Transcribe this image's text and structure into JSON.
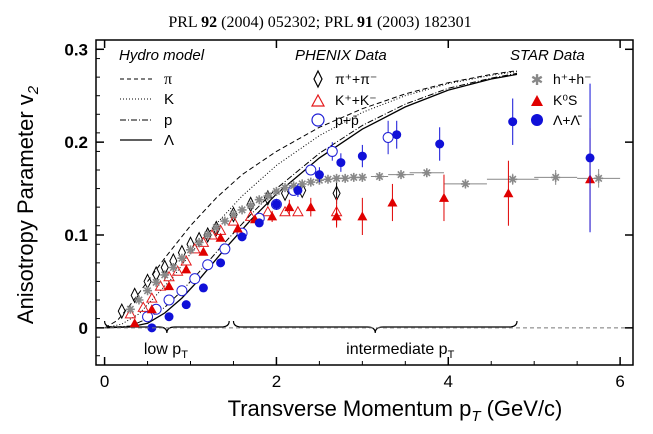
{
  "chart_data": {
    "type": "scatter",
    "citation": {
      "prefix1": "PRL ",
      "vol1": "92",
      "rest1": " (2004) 052302; PRL ",
      "vol2": "91",
      "rest2": " (2003) 182301"
    },
    "xlabel": "Transverse Momentum p",
    "xlabel_sub": "T",
    "xlabel_units": " (GeV/c)",
    "ylabel": "Anisotropy Parameter v",
    "ylabel_sub": "2",
    "xlim": [
      -0.1,
      6.15
    ],
    "ylim": [
      -0.04,
      0.31
    ],
    "xticks": [
      0,
      2,
      4,
      6
    ],
    "yticks": [
      0,
      0.1,
      0.2,
      0.3
    ],
    "xtick_labels": [
      "0",
      "2",
      "4",
      "6"
    ],
    "ytick_labels": [
      "0",
      "0.1",
      "0.2",
      "0.3"
    ],
    "zero_line": 0,
    "legend": {
      "hydro_title": "Hydro model",
      "phenix_title": "PHENIX Data",
      "star_title": "STAR Data",
      "hydro_items": [
        "π",
        "K",
        "p",
        "Λ"
      ],
      "phenix_items": [
        "π⁺+π⁻",
        "K⁺+K⁻",
        "p+p̄"
      ],
      "star_items": [
        "h⁺+h⁻",
        "K⁰S",
        "Λ+Λ̄"
      ]
    },
    "regions": [
      {
        "label_main": "low p",
        "label_sub": "T",
        "x_start": 0.0,
        "x_end": 1.45
      },
      {
        "label_main": "intermediate p",
        "label_sub": "T",
        "x_start": 1.5,
        "x_end": 4.8
      }
    ],
    "hydro_curves": [
      {
        "name": "π",
        "style": "dashed",
        "x": [
          0,
          0.15,
          0.3,
          0.5,
          0.7,
          1.0,
          1.3,
          1.6,
          2.0,
          2.5,
          3.0,
          3.5,
          4.0,
          4.5,
          4.8
        ],
        "y": [
          0,
          0.008,
          0.025,
          0.05,
          0.075,
          0.11,
          0.14,
          0.165,
          0.19,
          0.216,
          0.236,
          0.252,
          0.264,
          0.273,
          0.277
        ]
      },
      {
        "name": "K",
        "style": "dotted",
        "x": [
          0,
          0.2,
          0.4,
          0.6,
          0.8,
          1.0,
          1.3,
          1.6,
          2.0,
          2.5,
          3.0,
          3.5,
          4.0,
          4.5,
          4.8
        ],
        "y": [
          0,
          0.004,
          0.015,
          0.035,
          0.055,
          0.08,
          0.112,
          0.142,
          0.175,
          0.207,
          0.232,
          0.25,
          0.263,
          0.272,
          0.276
        ]
      },
      {
        "name": "p",
        "style": "dashdot",
        "x": [
          0,
          0.3,
          0.5,
          0.7,
          0.9,
          1.1,
          1.4,
          1.7,
          2.0,
          2.5,
          3.0,
          3.5,
          4.0,
          4.5,
          4.8
        ],
        "y": [
          0,
          0.002,
          0.01,
          0.022,
          0.04,
          0.06,
          0.092,
          0.122,
          0.15,
          0.188,
          0.218,
          0.241,
          0.258,
          0.269,
          0.274
        ]
      },
      {
        "name": "Λ",
        "style": "solid",
        "x": [
          0,
          0.3,
          0.5,
          0.7,
          0.9,
          1.1,
          1.4,
          1.7,
          2.0,
          2.5,
          3.0,
          3.5,
          4.0,
          4.5,
          4.8
        ],
        "y": [
          0,
          0.001,
          0.005,
          0.016,
          0.032,
          0.052,
          0.085,
          0.116,
          0.144,
          0.183,
          0.214,
          0.238,
          0.256,
          0.268,
          0.273
        ]
      }
    ],
    "series": [
      {
        "name": "PHENIX π⁺+π⁻",
        "marker": "diamond-open",
        "color": "#000000",
        "x": [
          0.2,
          0.35,
          0.5,
          0.6,
          0.7,
          0.8,
          0.9,
          1.0,
          1.1,
          1.2,
          1.3,
          1.5,
          1.7,
          1.9,
          2.1,
          2.3,
          2.7
        ],
        "y": [
          0.018,
          0.035,
          0.05,
          0.058,
          0.065,
          0.072,
          0.081,
          0.09,
          0.095,
          0.1,
          0.107,
          0.122,
          0.133,
          0.14,
          0.145,
          0.148,
          0.145
        ],
        "err": [
          0,
          0,
          0,
          0,
          0,
          0,
          0,
          0,
          0,
          0,
          0,
          0,
          0,
          0,
          0,
          0,
          0.012
        ]
      },
      {
        "name": "PHENIX K⁺+K⁻",
        "marker": "triangle-open",
        "color": "#e41a1c",
        "x": [
          0.3,
          0.45,
          0.55,
          0.65,
          0.75,
          0.85,
          0.95,
          1.05,
          1.15,
          1.25,
          1.35,
          1.5,
          1.7,
          1.9,
          2.1,
          2.25,
          2.7
        ],
        "y": [
          0.015,
          0.022,
          0.032,
          0.045,
          0.055,
          0.061,
          0.072,
          0.085,
          0.092,
          0.1,
          0.105,
          0.115,
          0.12,
          0.125,
          0.125,
          0.125,
          0.125
        ],
        "err": [
          0,
          0,
          0,
          0,
          0,
          0,
          0,
          0,
          0,
          0,
          0,
          0,
          0,
          0,
          0,
          0,
          0.015
        ]
      },
      {
        "name": "PHENIX p+p̄",
        "marker": "circle-open",
        "color": "#1f1fd6",
        "x": [
          0.5,
          0.6,
          0.75,
          0.9,
          1.05,
          1.2,
          1.4,
          1.6,
          1.8,
          2.0,
          2.2,
          2.4,
          2.65,
          3.3
        ],
        "y": [
          0.012,
          0.02,
          0.03,
          0.04,
          0.053,
          0.068,
          0.085,
          0.102,
          0.118,
          0.133,
          0.148,
          0.17,
          0.19,
          0.205
        ],
        "err": [
          0,
          0,
          0,
          0,
          0,
          0,
          0,
          0,
          0,
          0,
          0,
          0,
          0.01,
          0.018
        ]
      },
      {
        "name": "STAR h⁺+h⁻",
        "marker": "star",
        "color": "#888888",
        "x": [
          0.3,
          0.4,
          0.5,
          0.6,
          0.7,
          0.8,
          0.9,
          1.0,
          1.1,
          1.2,
          1.3,
          1.4,
          1.5,
          1.6,
          1.7,
          1.8,
          1.9,
          2.0,
          2.1,
          2.2,
          2.3,
          2.4,
          2.5,
          2.6,
          2.7,
          2.8,
          2.9,
          3.0,
          3.2,
          3.45,
          3.75,
          4.2,
          4.75,
          5.25,
          5.75
        ],
        "y": [
          0.02,
          0.03,
          0.04,
          0.049,
          0.057,
          0.065,
          0.075,
          0.084,
          0.092,
          0.1,
          0.108,
          0.115,
          0.122,
          0.127,
          0.132,
          0.138,
          0.142,
          0.147,
          0.151,
          0.153,
          0.155,
          0.157,
          0.159,
          0.16,
          0.161,
          0.161,
          0.162,
          0.162,
          0.163,
          0.165,
          0.167,
          0.155,
          0.16,
          0.162,
          0.161
        ],
        "xerr": [
          0,
          0,
          0,
          0,
          0,
          0,
          0,
          0,
          0,
          0,
          0,
          0,
          0,
          0,
          0,
          0,
          0,
          0,
          0,
          0,
          0,
          0,
          0,
          0,
          0,
          0,
          0,
          0,
          0.1,
          0.15,
          0.2,
          0.25,
          0.3,
          0.25,
          0.25
        ],
        "err": [
          0,
          0,
          0,
          0,
          0,
          0,
          0,
          0,
          0,
          0,
          0,
          0,
          0,
          0,
          0,
          0,
          0,
          0,
          0,
          0,
          0,
          0,
          0,
          0,
          0,
          0,
          0,
          0,
          0,
          0,
          0,
          0.005,
          0.006,
          0.008,
          0.01
        ]
      },
      {
        "name": "STAR K⁰S",
        "marker": "triangle-filled",
        "color": "#e00000",
        "x": [
          0.35,
          0.55,
          0.75,
          0.95,
          1.15,
          1.35,
          1.55,
          1.75,
          1.95,
          2.15,
          2.4,
          2.7,
          3.0,
          3.35,
          3.95,
          4.7,
          5.65
        ],
        "y": [
          0.005,
          0.02,
          0.045,
          0.063,
          0.082,
          0.097,
          0.107,
          0.117,
          0.12,
          0.13,
          0.13,
          0.12,
          0.12,
          0.135,
          0.14,
          0.145,
          0.16
        ],
        "err": [
          0,
          0,
          0,
          0,
          0,
          0,
          0,
          0,
          0.006,
          0.008,
          0.01,
          0.012,
          0.02,
          0.02,
          0.025,
          0.035,
          0.055
        ]
      },
      {
        "name": "STAR Λ+Λ̄",
        "marker": "circle-filled",
        "color": "#1010d8",
        "x": [
          0.55,
          0.75,
          0.95,
          1.15,
          1.35,
          1.6,
          1.8,
          2.0,
          2.25,
          2.5,
          2.75,
          3.0,
          3.4,
          3.9,
          4.75,
          5.65
        ],
        "y": [
          0.0,
          0.012,
          0.025,
          0.043,
          0.07,
          0.098,
          0.113,
          0.133,
          0.148,
          0.165,
          0.178,
          0.185,
          0.208,
          0.198,
          0.222,
          0.183
        ],
        "err": [
          0,
          0,
          0,
          0,
          0,
          0,
          0,
          0.006,
          0.007,
          0.008,
          0.01,
          0.012,
          0.015,
          0.018,
          0.025,
          0.08
        ]
      }
    ]
  }
}
